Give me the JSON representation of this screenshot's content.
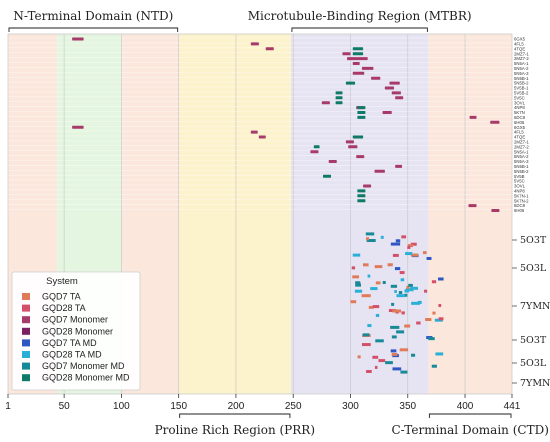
{
  "chart_data": {
    "type": "scatter",
    "x_axis": {
      "min": 1,
      "max": 441,
      "ticks": [
        1,
        50,
        100,
        150,
        200,
        250,
        300,
        350,
        400,
        441
      ]
    },
    "regions": [
      {
        "label": "N-Terminal Domain (NTD)",
        "start": 1,
        "end": 150,
        "label_position": "top"
      },
      {
        "label": "Proline Rich Region (PRR)",
        "start": 150,
        "end": 248,
        "label_position": "bottom"
      },
      {
        "label": "Microtubule-Binding Region (MTBR)",
        "start": 248,
        "end": 368,
        "label_position": "top"
      },
      {
        "label": "C-Terminal Domain (CTD)",
        "start": 368,
        "end": 441,
        "label_position": "bottom"
      }
    ],
    "background_bands": [
      {
        "start": 1,
        "end": 44,
        "color": "#fbe7dc"
      },
      {
        "start": 44,
        "end": 100,
        "color": "#e4f5e0"
      },
      {
        "start": 100,
        "end": 150,
        "color": "#fbe7dc"
      },
      {
        "start": 150,
        "end": 248,
        "color": "#fcf2cc"
      },
      {
        "start": 248,
        "end": 368,
        "color": "#e6e4f2"
      },
      {
        "start": 368,
        "end": 441,
        "color": "#fbe7dc"
      }
    ],
    "legend": {
      "title": "System",
      "placement": "bottom-left",
      "entries": [
        {
          "name": "GQD7 TA",
          "color": "#e07b5a"
        },
        {
          "name": "GQD28 TA",
          "color": "#d4506a"
        },
        {
          "name": "GQD7 Monomer",
          "color": "#a83a6a"
        },
        {
          "name": "GQD28 Monomer",
          "color": "#7a1f62"
        },
        {
          "name": "GQD7 TA MD",
          "color": "#2f57c4"
        },
        {
          "name": "GQD28 TA MD",
          "color": "#2ab0d6"
        },
        {
          "name": "GQD7 Monomer MD",
          "color": "#178a98"
        },
        {
          "name": "GQD28 Monomer MD",
          "color": "#0f7a68"
        }
      ]
    },
    "row_labels_top": [
      "6GX5",
      "4FL5",
      "4TQE",
      "2MZ7-1",
      "2MZ7-2",
      "5N5A-1",
      "5N5A-2",
      "5N5A-3",
      "5N5B-1",
      "5N5B-2",
      "5V5B-1",
      "5V5B-2",
      "5V5C",
      "3OVL",
      "4NP8",
      "5K7N",
      "6DC8",
      "6H06",
      "6GX5",
      "4FL5",
      "4TQE",
      "2MZ7-1",
      "2MZ7-2",
      "5N5A-1",
      "5N5A-2",
      "5N5A-3",
      "5N5B-1",
      "5N5B-2",
      "5V5B",
      "5V5C",
      "3OVL",
      "4NP8",
      "5K7N-1",
      "5K7N-2",
      "6DC8",
      "6H06"
    ],
    "row_labels_bottom": [
      "5O3T",
      "5O3L",
      "7YMN",
      "5O3T",
      "5O3L",
      "7YMN"
    ],
    "series": [
      {
        "name": "GQD7 Monomer",
        "segments": [
          {
            "row": 0,
            "x": [
              57,
              67
            ]
          },
          {
            "row": 1,
            "x": [
              213,
              220
            ]
          },
          {
            "row": 2,
            "x": [
              226,
              233
            ]
          },
          {
            "row": 3,
            "x": [
              293,
              300
            ]
          },
          {
            "row": 4,
            "x": [
              297,
              315
            ]
          },
          {
            "row": 5,
            "x": [
              302,
              308
            ]
          },
          {
            "row": 6,
            "x": [
              310,
              320
            ]
          },
          {
            "row": 7,
            "x": [
              302,
              312
            ]
          },
          {
            "row": 8,
            "x": [
              318,
              326
            ]
          },
          {
            "row": 9,
            "x": [
              334,
              343
            ]
          },
          {
            "row": 10,
            "x": [
              330,
              338
            ]
          },
          {
            "row": 11,
            "x": [
              336,
              344
            ]
          },
          {
            "row": 12,
            "x": [
              339,
              346
            ]
          },
          {
            "row": 13,
            "x": [
              275,
              282
            ]
          },
          {
            "row": 14,
            "x": [
              305,
              312
            ]
          },
          {
            "row": 15,
            "x": [
              328,
              336
            ]
          },
          {
            "row": 16,
            "x": [
              404,
              410
            ]
          },
          {
            "row": 17,
            "x": [
              422,
              430
            ]
          },
          {
            "row": 18,
            "x": [
              57,
              67
            ]
          },
          {
            "row": 19,
            "x": [
              213,
              219
            ]
          },
          {
            "row": 20,
            "x": [
              220,
              226
            ]
          },
          {
            "row": 21,
            "x": [
              296,
              303
            ]
          },
          {
            "row": 22,
            "x": [
              298,
              306
            ]
          },
          {
            "row": 23,
            "x": [
              265,
              272
            ]
          },
          {
            "row": 24,
            "x": [
              305,
              312
            ]
          },
          {
            "row": 25,
            "x": [
              281,
              288
            ]
          },
          {
            "row": 26,
            "x": [
              339,
              345
            ]
          },
          {
            "row": 27,
            "x": [
              321,
              330
            ]
          },
          {
            "row": 30,
            "x": [
              311,
              318
            ]
          },
          {
            "row": 34,
            "x": [
              403,
              410
            ]
          },
          {
            "row": 35,
            "x": [
              423,
              430
            ]
          }
        ]
      },
      {
        "name": "GQD28 Monomer MD",
        "segments": [
          {
            "row": 2,
            "x": [
              302,
              311
            ]
          },
          {
            "row": 3,
            "x": [
              302,
              311
            ]
          },
          {
            "row": 9,
            "x": [
              296,
              304
            ]
          },
          {
            "row": 11,
            "x": [
              287,
              293
            ]
          },
          {
            "row": 12,
            "x": [
              287,
              293
            ]
          },
          {
            "row": 13,
            "x": [
              287,
              293
            ]
          },
          {
            "row": 14,
            "x": [
              306,
              313
            ]
          },
          {
            "row": 15,
            "x": [
              306,
              313
            ]
          },
          {
            "row": 16,
            "x": [
              306,
              313
            ]
          },
          {
            "row": 20,
            "x": [
              302,
              311
            ]
          },
          {
            "row": 22,
            "x": [
              268,
              273
            ]
          },
          {
            "row": 28,
            "x": [
              276,
              283
            ]
          },
          {
            "row": 31,
            "x": [
              306,
              313
            ]
          },
          {
            "row": 32,
            "x": [
              306,
              313
            ]
          },
          {
            "row": 33,
            "x": [
              306,
              313
            ]
          }
        ]
      }
    ]
  }
}
